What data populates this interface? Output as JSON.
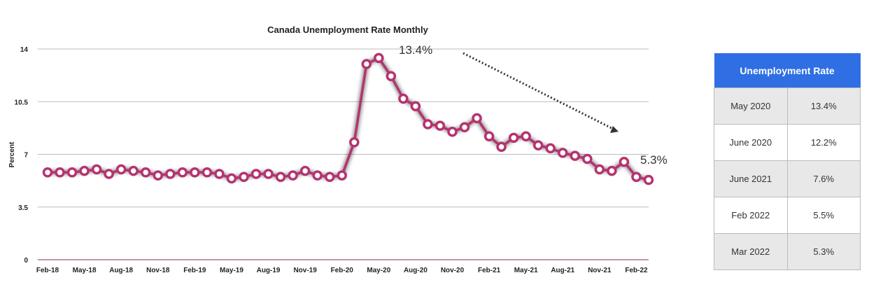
{
  "chart_data": {
    "type": "line",
    "title": "Canada Unemployment Rate Monthly",
    "ylabel": "Percent",
    "xlabel": "",
    "ylim": [
      0,
      14
    ],
    "yticks": [
      "0",
      "3.5",
      "7",
      "10.5",
      "14"
    ],
    "xtick_labels": [
      "Feb-18",
      "May-18",
      "Aug-18",
      "Nov-18",
      "Feb-19",
      "May-19",
      "Aug-19",
      "Nov-19",
      "Feb-20",
      "May-20",
      "Aug-20",
      "Nov-20",
      "Feb-21",
      "May-21",
      "Aug-21",
      "Nov-21",
      "Feb-22"
    ],
    "grid": true,
    "color": "#b5336f",
    "start": "Feb-18",
    "values": [
      5.8,
      5.8,
      5.8,
      5.9,
      6.0,
      5.7,
      6.0,
      5.9,
      5.8,
      5.6,
      5.7,
      5.8,
      5.8,
      5.8,
      5.7,
      5.4,
      5.5,
      5.7,
      5.7,
      5.5,
      5.6,
      5.9,
      5.6,
      5.5,
      5.6,
      7.8,
      13.0,
      13.4,
      12.2,
      10.7,
      10.2,
      9.0,
      8.9,
      8.5,
      8.8,
      9.4,
      8.2,
      7.5,
      8.1,
      8.2,
      7.6,
      7.4,
      7.1,
      6.9,
      6.7,
      6.0,
      5.9,
      6.5,
      5.5,
      5.3
    ],
    "annotations": [
      "13.4%",
      "5.3%"
    ]
  },
  "table": {
    "header": "Unemployment Rate",
    "rows": [
      [
        "May 2020",
        "13.4%"
      ],
      [
        "June 2020",
        "12.2%"
      ],
      [
        "June 2021",
        "7.6%"
      ],
      [
        "Feb 2022",
        "5.5%"
      ],
      [
        "Mar 2022",
        "5.3%"
      ]
    ]
  }
}
